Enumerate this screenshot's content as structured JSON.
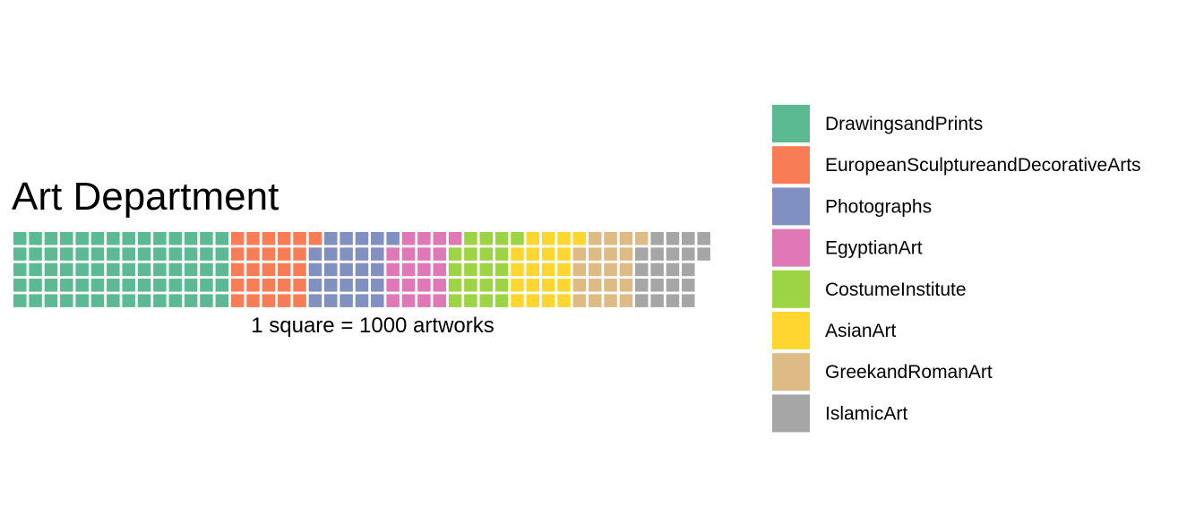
{
  "chart_data": {
    "type": "waffle",
    "title": "Art Department",
    "caption": "1 square = 1000 artworks",
    "rows": 5,
    "unit": 1000,
    "legend_position": "right",
    "series": [
      {
        "name": "DrawingsandPrints",
        "value": 70,
        "color": "#5CBA93"
      },
      {
        "name": "EuropeanSculptureandDecorativeArts",
        "value": 26,
        "color": "#F87D56"
      },
      {
        "name": "Photographs",
        "value": 25,
        "color": "#8090C0"
      },
      {
        "name": "EgyptianArt",
        "value": 20,
        "color": "#E077B7"
      },
      {
        "name": "CostumeInstitute",
        "value": 20,
        "color": "#9DD444"
      },
      {
        "name": "AsianArt",
        "value": 20,
        "color": "#FFD62F"
      },
      {
        "name": "GreekandRomanArt",
        "value": 20,
        "color": "#DEBA84"
      },
      {
        "name": "IslamicArt",
        "value": 21,
        "color": "#A6A6A6"
      }
    ]
  }
}
